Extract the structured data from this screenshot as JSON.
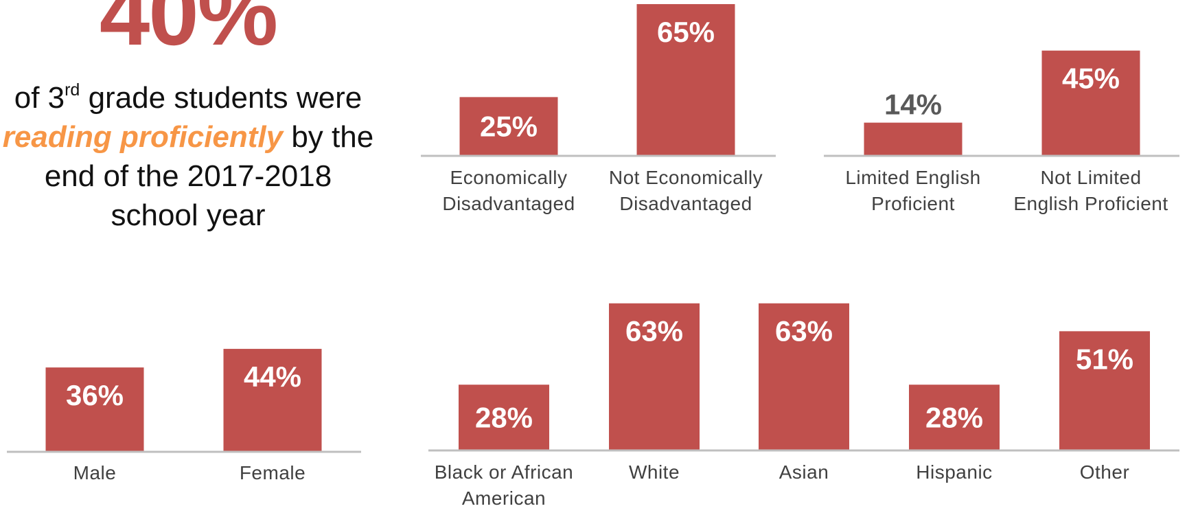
{
  "headline": {
    "stat": "40%",
    "line1_pre": "of 3",
    "line1_sup": "rd",
    "line1_post": " grade students were",
    "emphasis": "reading proficiently",
    "line2_post": " by the",
    "line3": "end of the 2017-2018",
    "line4": "school year"
  },
  "colors": {
    "bar": "#c0504d",
    "emphasis": "#f79646",
    "baseline": "#bfbfbf"
  },
  "chart_data": [
    {
      "type": "bar",
      "id": "economic",
      "categories": [
        [
          "Economically",
          "Disadvantaged"
        ],
        [
          "Not Economically",
          "Disadvantaged"
        ]
      ],
      "values": [
        25,
        65
      ],
      "labels": [
        "25%",
        "65%"
      ],
      "ylim": [
        0,
        65
      ]
    },
    {
      "type": "bar",
      "id": "english",
      "categories": [
        [
          "Limited English",
          "Proficient"
        ],
        [
          "Not Limited",
          "English Proficient"
        ]
      ],
      "values": [
        14,
        45
      ],
      "labels": [
        "14%",
        "45%"
      ],
      "ylim": [
        0,
        65
      ]
    },
    {
      "type": "bar",
      "id": "gender",
      "categories": [
        [
          "Male"
        ],
        [
          "Female"
        ]
      ],
      "values": [
        36,
        44
      ],
      "labels": [
        "36%",
        "44%"
      ],
      "ylim": [
        0,
        65
      ]
    },
    {
      "type": "bar",
      "id": "race",
      "categories": [
        [
          "Black or African",
          "American"
        ],
        [
          "White"
        ],
        [
          "Asian"
        ],
        [
          "Hispanic"
        ],
        [
          "Other"
        ]
      ],
      "values": [
        28,
        63,
        63,
        28,
        51
      ],
      "labels": [
        "28%",
        "63%",
        "63%",
        "28%",
        "51%"
      ],
      "ylim": [
        0,
        65
      ]
    }
  ]
}
